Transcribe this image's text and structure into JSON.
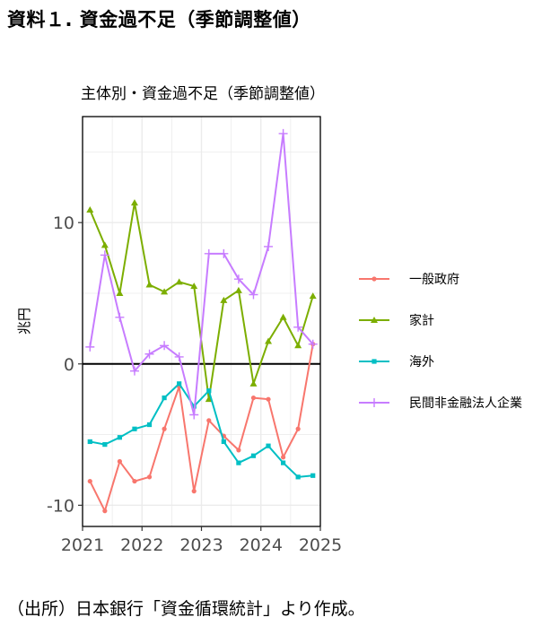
{
  "page": {
    "title": "資料１. 資金過不足（季節調整値）",
    "source": "（出所）日本銀行「資金循環統計」より作成。"
  },
  "chart_data": {
    "type": "line",
    "title": "主体別・資金過不足（季節調整値）",
    "xlabel": "",
    "ylabel": "兆円",
    "xlim": [
      2021.0,
      2025.0
    ],
    "ylim": [
      -11.5,
      17.5
    ],
    "x_ticks": [
      2021,
      2022,
      2023,
      2024,
      2025
    ],
    "x_tick_labels": [
      "2021",
      "2022",
      "2023",
      "2024",
      "2025"
    ],
    "y_ticks": [
      -10,
      0,
      10
    ],
    "y_tick_labels": [
      "-10",
      "0",
      "10"
    ],
    "zero_line": true,
    "grid": true,
    "legend_position": "right",
    "x": [
      2021.125,
      2021.375,
      2021.625,
      2021.875,
      2022.125,
      2022.375,
      2022.625,
      2022.875,
      2023.125,
      2023.375,
      2023.625,
      2023.875,
      2024.125,
      2024.375,
      2024.625,
      2024.875
    ],
    "series": [
      {
        "name": "一般政府",
        "color": "#F8766D",
        "marker": "circle",
        "values": [
          -8.3,
          -10.4,
          -6.9,
          -8.3,
          -8.0,
          -4.6,
          -1.6,
          -9.0,
          -4.0,
          -5.1,
          -6.1,
          -2.4,
          -2.5,
          -6.6,
          -4.6,
          1.4
        ]
      },
      {
        "name": "家計",
        "color": "#7CAE00",
        "marker": "triangle",
        "values": [
          10.9,
          8.4,
          5.0,
          11.4,
          5.6,
          5.1,
          5.8,
          5.5,
          -2.5,
          4.5,
          5.2,
          -1.4,
          1.6,
          3.3,
          1.3,
          4.8
        ]
      },
      {
        "name": "海外",
        "color": "#00BFC4",
        "marker": "square",
        "values": [
          -5.5,
          -5.7,
          -5.2,
          -4.6,
          -4.3,
          -2.4,
          -1.4,
          -3.0,
          -1.9,
          -5.5,
          -7.0,
          -6.5,
          -5.8,
          -7.0,
          -8.0,
          -7.9
        ]
      },
      {
        "name": "民間非金融法人企業",
        "color": "#C77CFF",
        "marker": "plus",
        "values": [
          1.2,
          7.7,
          3.3,
          -0.5,
          0.7,
          1.3,
          0.5,
          -3.6,
          7.8,
          7.8,
          6.0,
          4.9,
          8.3,
          16.3,
          2.6,
          1.4
        ]
      }
    ]
  }
}
